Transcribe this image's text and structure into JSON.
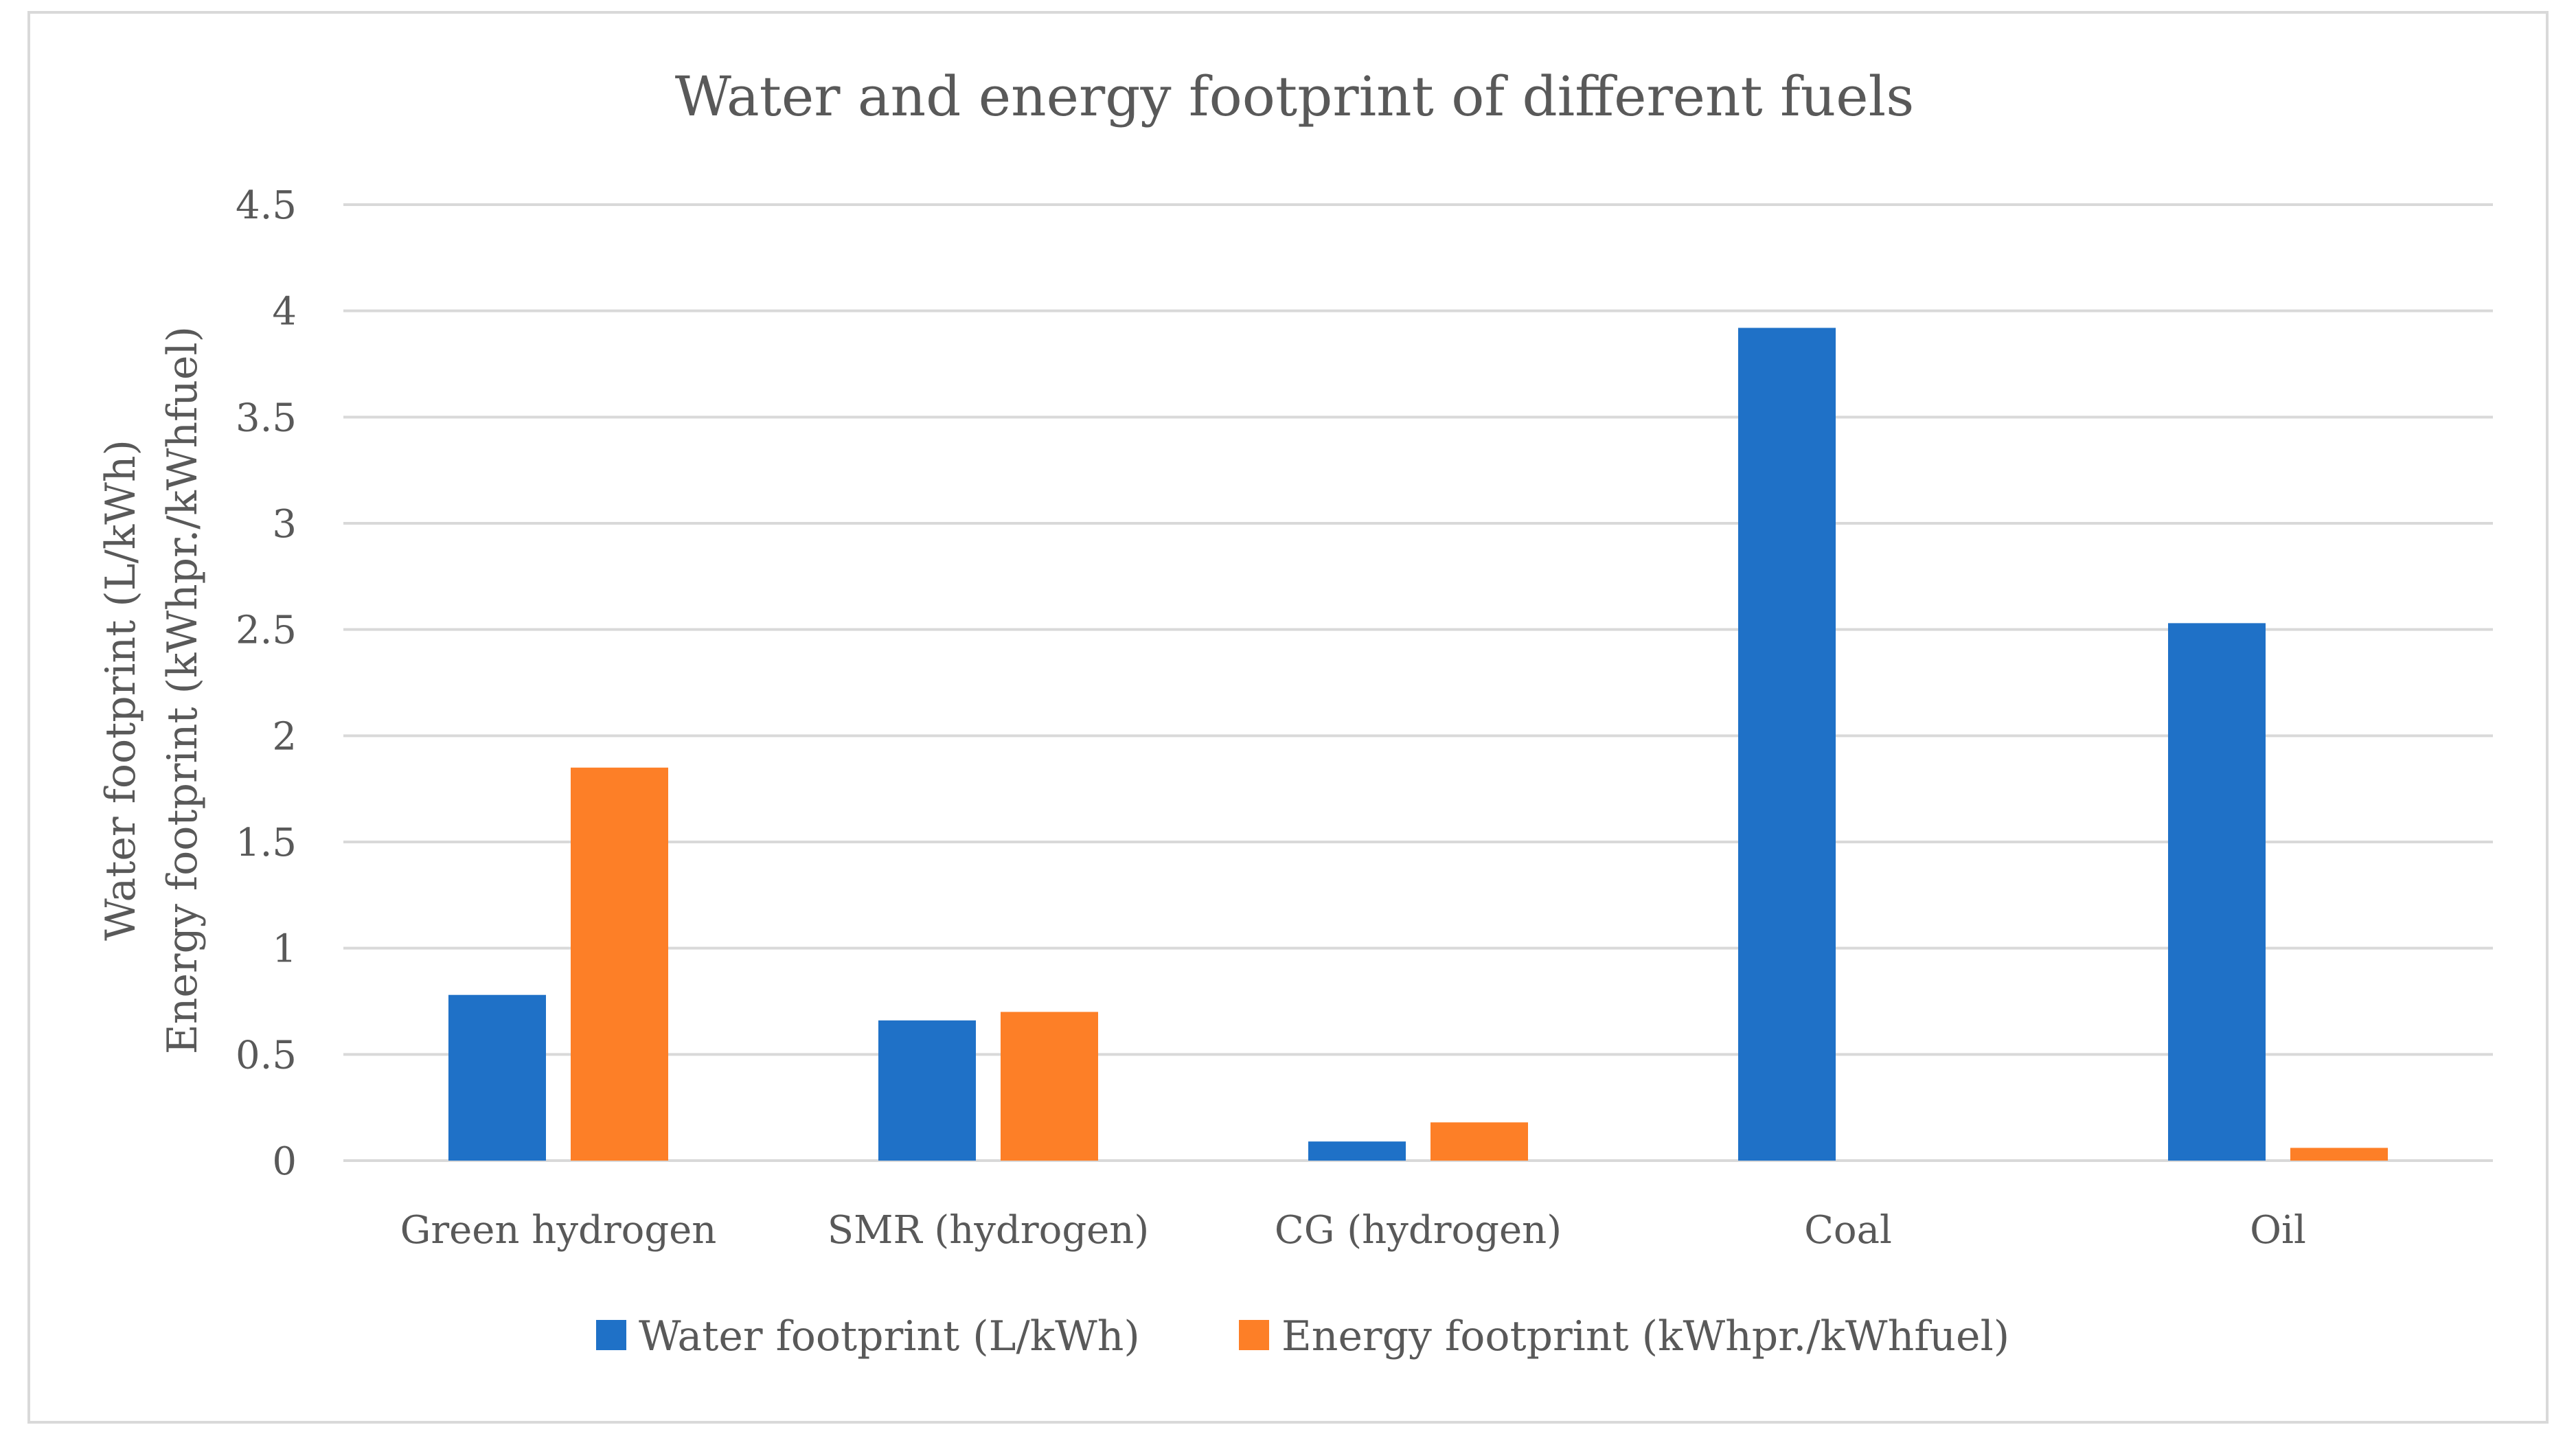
{
  "chart_data": {
    "type": "bar",
    "title": "Water and energy footprint of different fuels",
    "xlabel": "",
    "ylabel": [
      "Water footprint (L/kWh)",
      "Energy footprint (kWhpr./kWhfuel)"
    ],
    "ylim": [
      0,
      4.5
    ],
    "yticks": [
      "0",
      "0.5",
      "1",
      "1.5",
      "2",
      "2.5",
      "3",
      "3.5",
      "4",
      "4.5"
    ],
    "ytick_values": [
      0,
      0.5,
      1,
      1.5,
      2,
      2.5,
      3,
      3.5,
      4,
      4.5
    ],
    "grid": true,
    "legend_position": "bottom",
    "categories": [
      "Green hydrogen",
      "SMR (hydrogen)",
      "CG (hydrogen)",
      "Coal",
      "Oil"
    ],
    "series": [
      {
        "name": "Water footprint (L/kWh)",
        "color": "#1f71c7",
        "values": [
          0.78,
          0.66,
          0.09,
          3.92,
          2.53
        ]
      },
      {
        "name": "Energy footprint (kWhpr./kWhfuel)",
        "color": "#fd7f27",
        "values": [
          1.85,
          0.7,
          0.18,
          0,
          0.06
        ]
      }
    ]
  }
}
